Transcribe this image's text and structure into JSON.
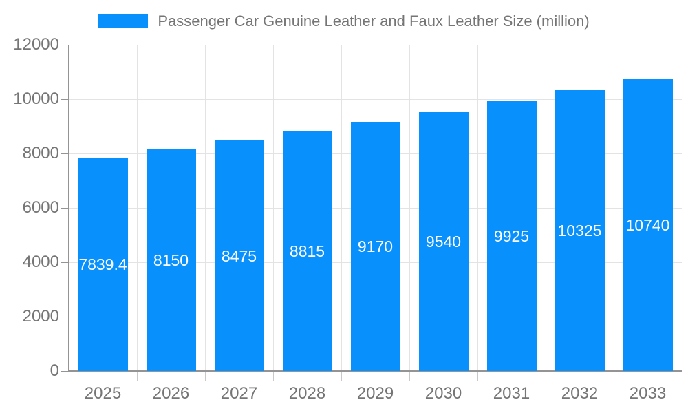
{
  "legend": {
    "label": "Passenger Car Genuine Leather and Faux Leather Size (million)"
  },
  "colors": {
    "bar": "#0890FC",
    "axis_text": "#757575",
    "gridline": "#e3e3e3",
    "axis_line": "#949494",
    "value_label": "#ffffff"
  },
  "chart_data": {
    "type": "bar",
    "title": "Passenger Car Genuine Leather and Faux Leather Size (million)",
    "categories": [
      "2025",
      "2026",
      "2027",
      "2028",
      "2029",
      "2030",
      "2031",
      "2032",
      "2033"
    ],
    "values": [
      7839.4,
      8150,
      8475,
      8815,
      9170,
      9540,
      9925,
      10325,
      10740
    ],
    "value_labels": [
      "7839.4",
      "8150",
      "8475",
      "8815",
      "9170",
      "9540",
      "9925",
      "10325",
      "10740"
    ],
    "xlabel": "",
    "ylabel": "",
    "ylim": [
      0,
      12000
    ],
    "y_ticks": [
      0,
      2000,
      4000,
      6000,
      8000,
      10000,
      12000
    ],
    "grid": "on",
    "legend_position": "top-center",
    "bar_color": "#0890FC",
    "value_label_position": "inside-center"
  }
}
